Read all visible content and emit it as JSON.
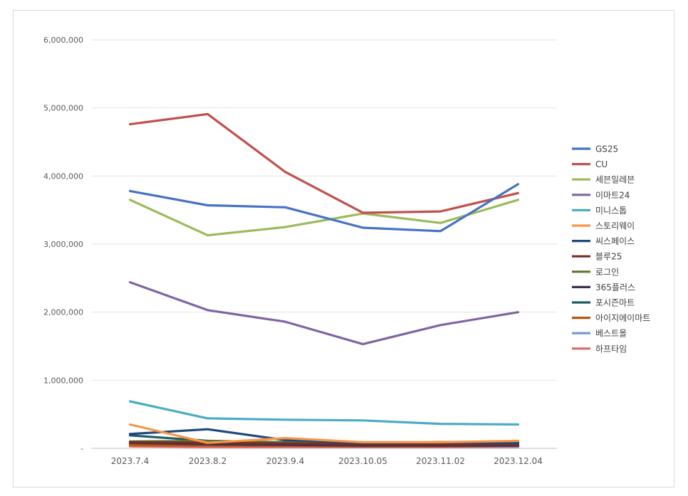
{
  "chart_data": {
    "type": "line",
    "title": "",
    "xlabel": "",
    "ylabel": "",
    "ylim": [
      0,
      6000000
    ],
    "yticks": [
      0,
      1000000,
      2000000,
      3000000,
      4000000,
      5000000,
      6000000
    ],
    "ytick_labels": [
      "-",
      "1,000,000",
      "2,000,000",
      "3,000,000",
      "4,000,000",
      "5,000,000",
      "6,000,000"
    ],
    "categories": [
      "2023.7.4",
      "2023.8.2",
      "2023.9.4",
      "2023.10.05",
      "2023.11.02",
      "2023.12.04"
    ],
    "grid": true,
    "legend_position": "right",
    "series": [
      {
        "name": "GS25",
        "color": "#4472C4",
        "values": [
          3780000,
          3570000,
          3540000,
          3240000,
          3190000,
          3880000
        ]
      },
      {
        "name": "CU",
        "color": "#C0504D",
        "values": [
          4760000,
          4910000,
          4060000,
          3460000,
          3480000,
          3750000
        ]
      },
      {
        "name": "세븐일레븐",
        "color": "#9BBB59",
        "values": [
          3650000,
          3130000,
          3250000,
          3450000,
          3310000,
          3650000
        ]
      },
      {
        "name": "이마트24",
        "color": "#8064A2",
        "values": [
          2440000,
          2030000,
          1860000,
          1530000,
          1810000,
          2000000
        ]
      },
      {
        "name": "미니스톱",
        "color": "#4BACC6",
        "values": [
          690000,
          440000,
          420000,
          410000,
          360000,
          350000
        ]
      },
      {
        "name": "스토리웨이",
        "color": "#F79646",
        "values": [
          350000,
          80000,
          150000,
          90000,
          90000,
          110000
        ]
      },
      {
        "name": "씨스페이스",
        "color": "#1F497D",
        "values": [
          210000,
          280000,
          120000,
          80000,
          90000,
          80000
        ]
      },
      {
        "name": "블루25",
        "color": "#772C2A",
        "values": [
          90000,
          80000,
          70000,
          60000,
          60000,
          60000
        ]
      },
      {
        "name": "로그인",
        "color": "#5F7530",
        "values": [
          100000,
          110000,
          90000,
          70000,
          80000,
          100000
        ]
      },
      {
        "name": "365플러스",
        "color": "#3F3151",
        "values": [
          80000,
          60000,
          50000,
          40000,
          40000,
          40000
        ]
      },
      {
        "name": "포시즌마트",
        "color": "#215968",
        "values": [
          190000,
          110000,
          80000,
          70000,
          90000,
          100000
        ]
      },
      {
        "name": "아이지에이마트",
        "color": "#B65708",
        "values": [
          50000,
          40000,
          40000,
          30000,
          30000,
          40000
        ]
      },
      {
        "name": "베스트올",
        "color": "#729ACA",
        "values": [
          60000,
          50000,
          40000,
          30000,
          30000,
          30000
        ]
      },
      {
        "name": "하프타임",
        "color": "#E06666",
        "values": [
          30000,
          20000,
          20000,
          20000,
          20000,
          20000
        ]
      }
    ]
  }
}
